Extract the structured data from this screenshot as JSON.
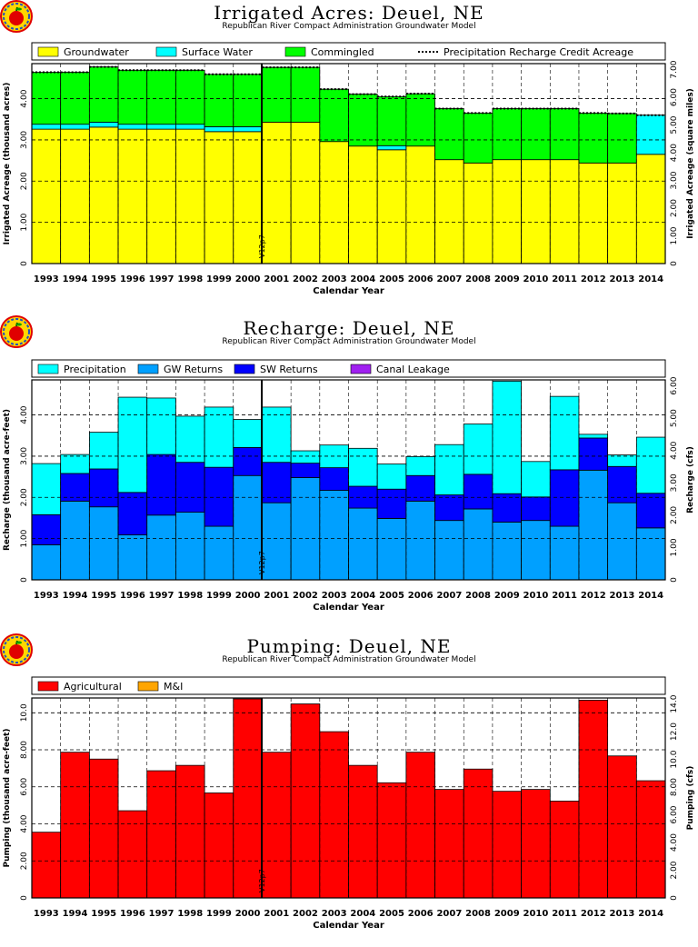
{
  "years": [
    "1993",
    "1994",
    "1995",
    "1996",
    "1997",
    "1998",
    "1999",
    "2000",
    "2001",
    "2002",
    "2003",
    "2004",
    "2005",
    "2006",
    "2007",
    "2008",
    "2009",
    "2010",
    "2011",
    "2012",
    "2013",
    "2014"
  ],
  "chart_data": [
    {
      "type": "area",
      "title": "Irrigated Acres: Deuel, NE",
      "subtitle": "Republican River Compact Administration Groundwater Model",
      "xlabel": "Calendar Year",
      "ylabel": "Irrigated Acreage (thousand acres)",
      "ylabel_right": "Irrigated Acreage (square miles)",
      "ylim": [
        0,
        4.85
      ],
      "yticks": [
        "0",
        "1.00",
        "2.00",
        "3.00",
        "4.00"
      ],
      "yticks_right": [
        "0",
        "1.00",
        "2.00",
        "3.00",
        "4.00",
        "5.00",
        "6.00",
        "7.00"
      ],
      "marker_label": "V12p7",
      "legend": [
        "Groundwater",
        "Surface Water",
        "Commingled",
        "Precipitation Recharge Credit Acreage"
      ],
      "colors": {
        "Groundwater": "#ffff00",
        "Surface Water": "#00ffff",
        "Commingled": "#00ff00"
      },
      "series": [
        {
          "name": "Groundwater",
          "values": [
            3.26,
            3.26,
            3.31,
            3.26,
            3.26,
            3.26,
            3.2,
            3.2,
            3.43,
            3.43,
            2.96,
            2.85,
            2.76,
            2.85,
            2.52,
            2.44,
            2.52,
            2.52,
            2.52,
            2.44,
            2.44,
            2.65
          ]
        },
        {
          "name": "Surface Water",
          "values": [
            0.12,
            0.12,
            0.12,
            0.12,
            0.12,
            0.12,
            0.12,
            0.12,
            0.0,
            0.0,
            0.0,
            0.0,
            0.1,
            0.0,
            0.0,
            0.0,
            0.0,
            0.0,
            0.0,
            0.0,
            0.0,
            0.95
          ]
        },
        {
          "name": "Commingled",
          "values": [
            1.26,
            1.26,
            1.34,
            1.31,
            1.31,
            1.31,
            1.27,
            1.27,
            1.33,
            1.33,
            1.27,
            1.26,
            1.19,
            1.27,
            1.24,
            1.21,
            1.24,
            1.24,
            1.24,
            1.21,
            1.2,
            0.0
          ]
        },
        {
          "name": "Precipitation Recharge Credit Acreage",
          "values": [
            4.64,
            4.64,
            4.77,
            4.69,
            4.69,
            4.69,
            4.59,
            4.59,
            4.76,
            4.76,
            4.23,
            4.11,
            4.05,
            4.12,
            3.76,
            3.65,
            3.76,
            3.76,
            3.76,
            3.65,
            3.64,
            3.6
          ]
        }
      ]
    },
    {
      "type": "area",
      "title": "Recharge: Deuel, NE",
      "subtitle": "Republican River Compact Administration Groundwater Model",
      "xlabel": "Calendar Year",
      "ylabel": "Recharge (thousand acre-feet)",
      "ylabel_right": "Recharge (cfs)",
      "ylim": [
        0,
        4.85
      ],
      "yticks": [
        "0",
        "1.00",
        "2.00",
        "3.00",
        "4.00"
      ],
      "yticks_right": [
        "0",
        "1.00",
        "2.00",
        "3.00",
        "4.00",
        "5.00",
        "6.00"
      ],
      "marker_label": "V12p7",
      "legend": [
        "Precipitation",
        "GW Returns",
        "SW Returns",
        "Canal Leakage"
      ],
      "colors": {
        "GW Returns": "#00a0ff",
        "SW Returns": "#0000ff",
        "Precipitation": "#00ffff",
        "Canal Leakage": "#a020f0"
      },
      "series": [
        {
          "name": "GW Returns",
          "values": [
            0.85,
            1.91,
            1.77,
            1.09,
            1.57,
            1.64,
            1.3,
            2.53,
            1.87,
            2.48,
            2.17,
            1.74,
            1.49,
            1.91,
            1.44,
            1.72,
            1.4,
            1.44,
            1.3,
            2.66,
            1.87,
            1.26
          ]
        },
        {
          "name": "SW Returns",
          "values": [
            0.73,
            0.67,
            0.92,
            1.03,
            1.47,
            1.21,
            1.43,
            0.68,
            0.98,
            0.35,
            0.55,
            0.53,
            0.71,
            0.62,
            0.62,
            0.84,
            0.69,
            0.57,
            1.37,
            0.78,
            0.88,
            0.84
          ]
        },
        {
          "name": "Precipitation",
          "values": [
            1.24,
            0.46,
            0.89,
            2.31,
            1.37,
            1.12,
            1.46,
            0.68,
            1.34,
            0.3,
            0.55,
            0.92,
            0.61,
            0.46,
            1.22,
            1.22,
            2.73,
            0.86,
            1.78,
            0.09,
            0.28,
            1.36
          ]
        },
        {
          "name": "Canal Leakage",
          "values": [
            0,
            0,
            0,
            0,
            0,
            0,
            0,
            0,
            0,
            0,
            0,
            0,
            0,
            0,
            0,
            0,
            0,
            0,
            0,
            0,
            0,
            0
          ]
        }
      ]
    },
    {
      "type": "bar",
      "title": "Pumping: Deuel, NE",
      "subtitle": "Republican River Compact Administration Groundwater Model",
      "xlabel": "Calendar Year",
      "ylabel": "Pumping (thousand acre-feet)",
      "ylabel_right": "Pumping (cfs)",
      "ylim": [
        0,
        10.8
      ],
      "yticks": [
        "0",
        "2.00",
        "4.00",
        "6.00",
        "8.00",
        "10.0"
      ],
      "yticks_right": [
        "0",
        "2.00",
        "4.00",
        "6.00",
        "8.00",
        "10.0",
        "12.0",
        "14.0"
      ],
      "marker_label": "V12p7",
      "legend": [
        "Agricultural",
        "M&I"
      ],
      "colors": {
        "Agricultural": "#ff0000",
        "M&I": "#ffa500"
      },
      "series": [
        {
          "name": "Agricultural",
          "values": [
            3.55,
            7.87,
            7.5,
            4.71,
            6.87,
            7.16,
            5.67,
            10.75,
            7.87,
            10.48,
            8.98,
            7.16,
            6.22,
            7.87,
            5.86,
            6.96,
            5.76,
            5.86,
            5.23,
            10.68,
            7.67,
            6.33
          ]
        },
        {
          "name": "M&I",
          "values": [
            0,
            0,
            0,
            0,
            0,
            0,
            0,
            0,
            0,
            0,
            0,
            0,
            0,
            0,
            0,
            0,
            0,
            0,
            0,
            0,
            0,
            0
          ]
        }
      ]
    }
  ]
}
